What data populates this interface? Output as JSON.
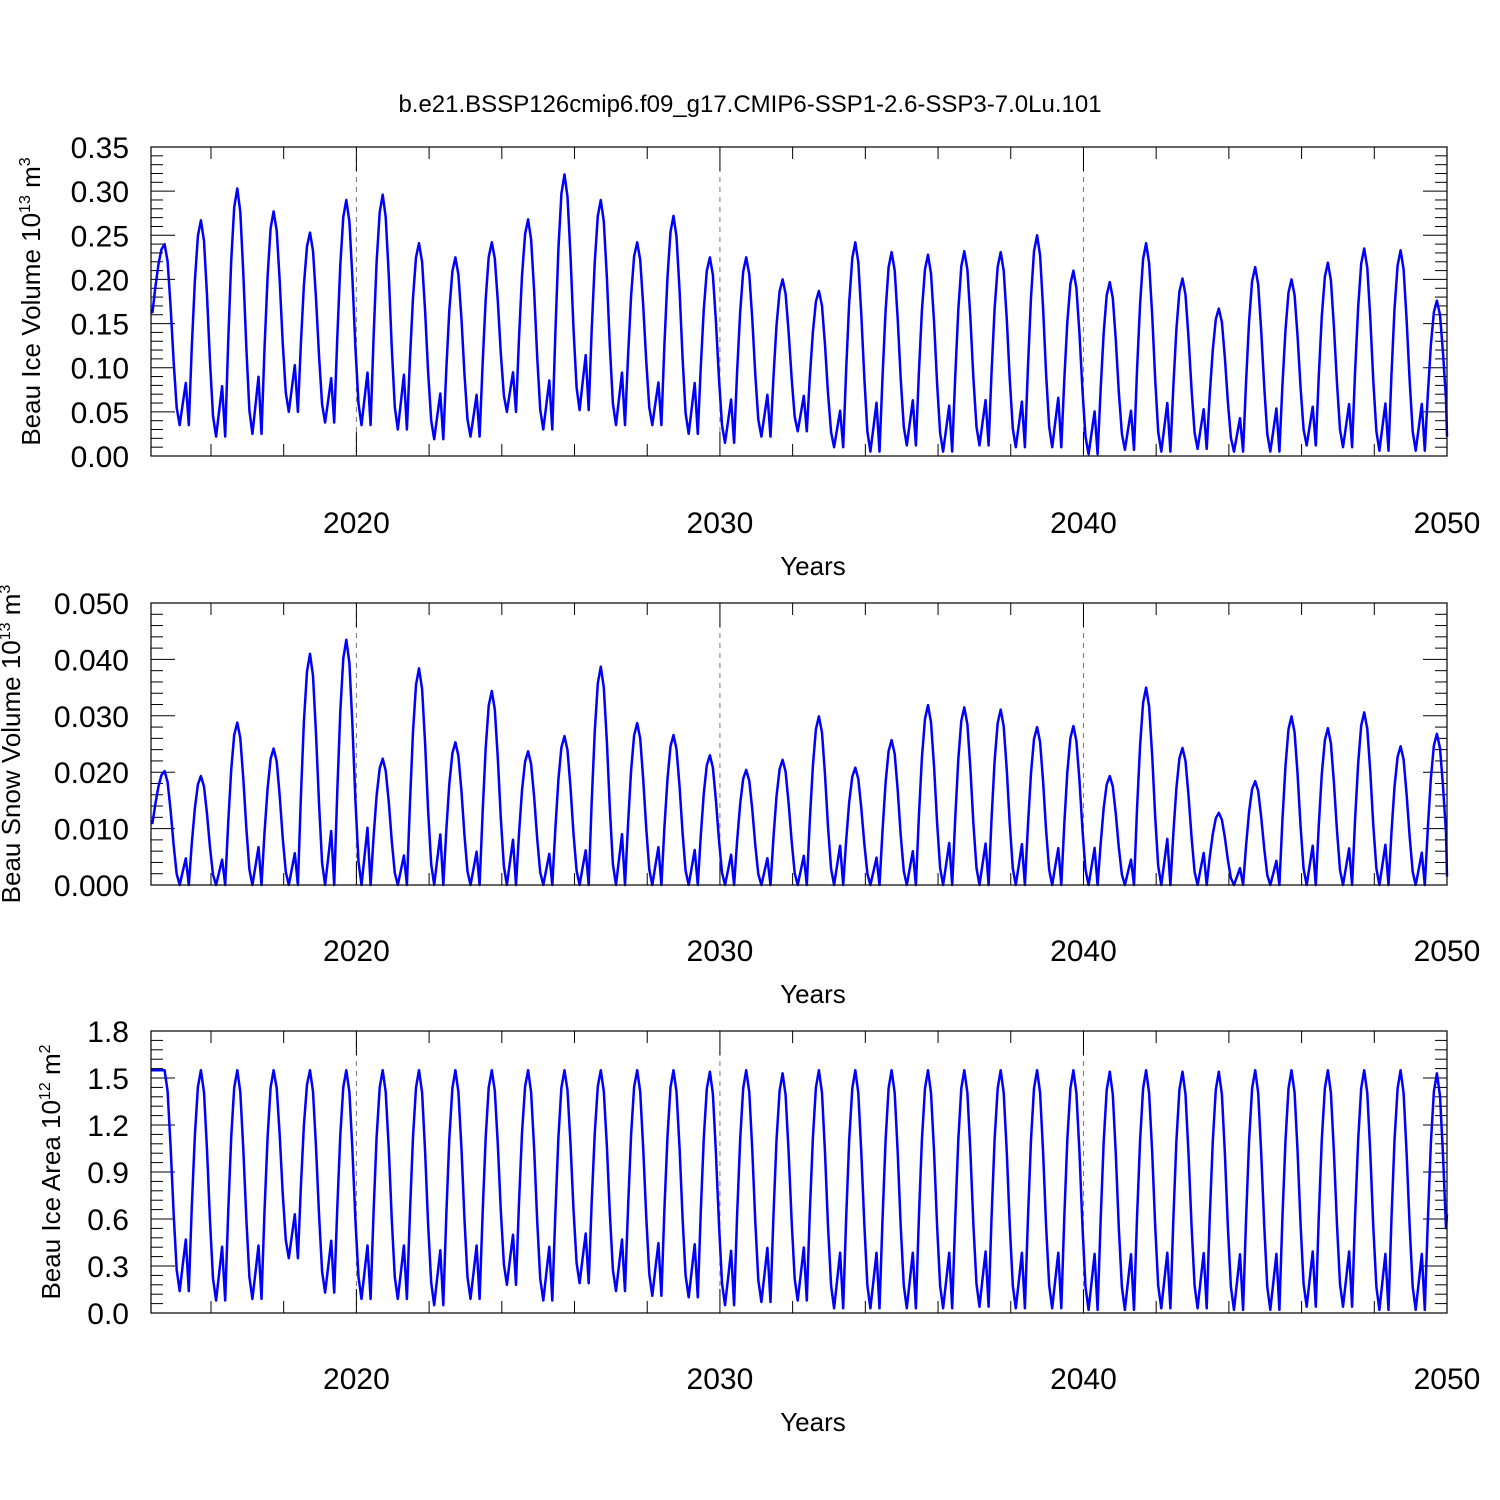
{
  "title": "b.e21.BSSP126cmip6.f09_g17.CMIP6-SSP1-2.6-SSP3-7.0Lu.101",
  "colors": {
    "line": "#0000ff",
    "axes": "#000000",
    "grid": "#777777"
  },
  "chart_data": [
    {
      "type": "line",
      "ylabel_main": "Beau Ice Volume 10",
      "ylabel_exp": "13",
      "ylabel_unit": " m",
      "ylabel_unit_exp": "3",
      "xlabel": "Years",
      "xlim": [
        2014,
        2050
      ],
      "xticks": [
        "2020",
        "2030",
        "2040",
        "2050"
      ],
      "ylim": [
        0,
        0.35
      ],
      "yticks": [
        "0.00",
        "0.05",
        "0.10",
        "0.15",
        "0.20",
        "0.25",
        "0.30",
        "0.35"
      ],
      "grid_x": [
        2020,
        2030,
        2040
      ],
      "series": [
        {
          "name": "Beau Ice Volume",
          "start_year": 2014.0,
          "step": 0.08333,
          "annual_max": [
            0.24,
            0.267,
            0.303,
            0.277,
            0.253,
            0.29,
            0.296,
            0.241,
            0.225,
            0.242,
            0.268,
            0.319,
            0.29,
            0.242,
            0.272,
            0.225,
            0.225,
            0.2,
            0.187,
            0.242,
            0.231,
            0.228,
            0.232,
            0.231,
            0.25,
            0.21,
            0.197,
            0.241,
            0.201,
            0.167,
            0.214,
            0.2,
            0.219,
            0.235,
            0.233,
            0.176
          ],
          "annual_min": [
            0.035,
            0.022,
            0.025,
            0.05,
            0.038,
            0.035,
            0.03,
            0.019,
            0.022,
            0.05,
            0.03,
            0.052,
            0.035,
            0.035,
            0.025,
            0.015,
            0.022,
            0.028,
            0.01,
            0.005,
            0.012,
            0.005,
            0.012,
            0.01,
            0.01,
            0.002,
            0.007,
            0.005,
            0.008,
            0.005,
            0.005,
            0.012,
            0.01,
            0.006,
            0.006,
            0.005
          ],
          "start_value": 0.163,
          "end_value": 0.022
        }
      ]
    },
    {
      "type": "line",
      "ylabel_main": "Beau Snow Volume 10",
      "ylabel_exp": "13",
      "ylabel_unit": " m",
      "ylabel_unit_exp": "3",
      "xlabel": "Years",
      "xlim": [
        2014,
        2050
      ],
      "xticks": [
        "2020",
        "2030",
        "2040",
        "2050"
      ],
      "ylim": [
        0,
        0.05
      ],
      "yticks": [
        "0.000",
        "0.010",
        "0.020",
        "0.030",
        "0.040",
        "0.050"
      ],
      "grid_x": [
        2020,
        2030,
        2040
      ],
      "series": [
        {
          "name": "Beau Snow Volume",
          "start_year": 2014.0,
          "step": 0.08333,
          "annual_max": [
            0.0202,
            0.0193,
            0.0288,
            0.0242,
            0.041,
            0.0435,
            0.0224,
            0.0384,
            0.0253,
            0.0344,
            0.0237,
            0.0264,
            0.0387,
            0.0287,
            0.0266,
            0.023,
            0.0204,
            0.0222,
            0.0299,
            0.0208,
            0.0257,
            0.0319,
            0.0315,
            0.0311,
            0.028,
            0.0282,
            0.0193,
            0.035,
            0.0243,
            0.0128,
            0.0184,
            0.0299,
            0.0278,
            0.0306,
            0.0246,
            0.0268
          ],
          "annual_min": [
            0.0,
            0.0,
            0.0,
            0.0,
            0.0,
            0.0,
            0.0,
            0.0,
            0.0,
            0.0,
            0.0,
            0.0,
            0.0,
            0.0,
            0.0,
            0.0,
            0.0,
            0.0,
            0.0,
            0.0,
            0.0,
            0.0,
            0.0,
            0.0,
            0.0,
            0.0,
            0.0,
            0.0,
            0.0,
            0.0,
            0.0,
            0.0,
            0.0,
            0.0,
            0.0,
            0.0
          ],
          "start_value": 0.011,
          "end_value": 0.0015
        }
      ]
    },
    {
      "type": "line",
      "ylabel_main": "Beau Ice Area 10",
      "ylabel_exp": "12",
      "ylabel_unit": " m",
      "ylabel_unit_exp": "2",
      "xlabel": "Years",
      "xlim": [
        2014,
        2050
      ],
      "xticks": [
        "2020",
        "2030",
        "2040",
        "2050"
      ],
      "ylim": [
        0,
        1.8
      ],
      "yticks": [
        "0.0",
        "0.3",
        "0.6",
        "0.9",
        "1.2",
        "1.5",
        "1.8"
      ],
      "grid_x": [
        2020,
        2030,
        2040
      ],
      "series": [
        {
          "name": "Beau Ice Area",
          "start_year": 2014.0,
          "step": 0.08333,
          "annual_max": [
            1.55,
            1.55,
            1.55,
            1.55,
            1.55,
            1.55,
            1.55,
            1.55,
            1.55,
            1.55,
            1.55,
            1.55,
            1.55,
            1.55,
            1.55,
            1.54,
            1.55,
            1.53,
            1.55,
            1.55,
            1.55,
            1.55,
            1.55,
            1.55,
            1.55,
            1.55,
            1.54,
            1.55,
            1.54,
            1.54,
            1.55,
            1.55,
            1.55,
            1.55,
            1.55,
            1.53
          ],
          "annual_min": [
            0.14,
            0.08,
            0.09,
            0.35,
            0.13,
            0.09,
            0.09,
            0.05,
            0.09,
            0.18,
            0.08,
            0.19,
            0.14,
            0.11,
            0.1,
            0.05,
            0.07,
            0.08,
            0.03,
            0.03,
            0.03,
            0.03,
            0.04,
            0.03,
            0.03,
            0.02,
            0.02,
            0.03,
            0.03,
            0.02,
            0.02,
            0.04,
            0.04,
            0.02,
            0.02,
            0.02
          ],
          "start_value": 1.55,
          "end_value": 0.63
        }
      ]
    }
  ]
}
